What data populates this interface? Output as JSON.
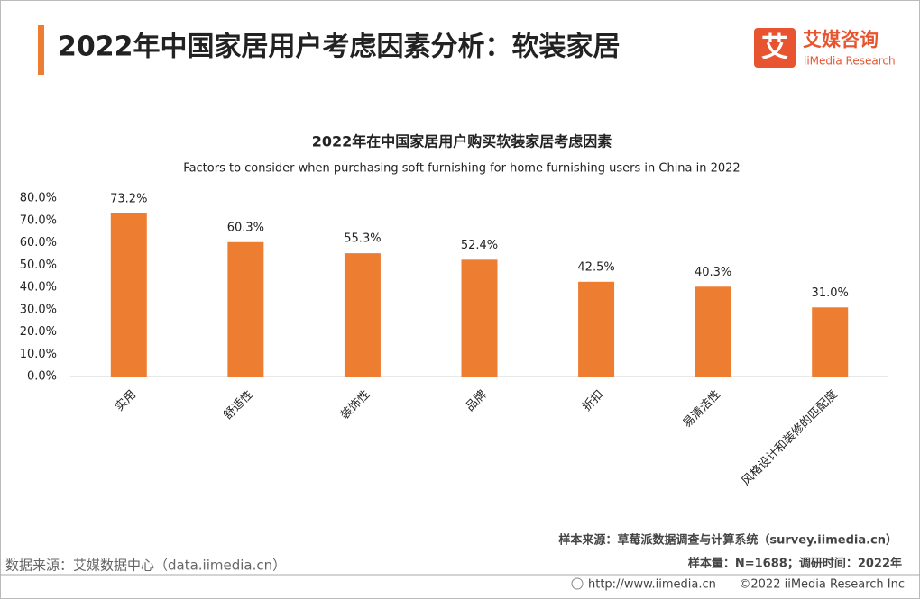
{
  "header": {
    "title": "2022年中国家居用户考虑因素分析：软装家居",
    "logo_mark": "艾",
    "logo_name": "艾媒咨询",
    "logo_en": "iiMedia Research"
  },
  "chart_data": {
    "type": "bar",
    "title": "2022年在中国家居用户购买软装家居考虑因素",
    "subtitle": "Factors to consider when purchasing soft furnishing for home furnishing users in China in 2022",
    "categories": [
      "实用",
      "舒适性",
      "装饰性",
      "品牌",
      "折扣",
      "易清洁性",
      "风格设计和装修的匹配度"
    ],
    "values": [
      73.2,
      60.3,
      55.3,
      52.4,
      42.5,
      40.3,
      31.0
    ],
    "value_labels": [
      "73.2%",
      "60.3%",
      "55.3%",
      "52.4%",
      "42.5%",
      "40.3%",
      "31.0%"
    ],
    "color": "#ed7d31",
    "ylim": [
      0,
      80
    ],
    "yticks": [
      {
        "value": 0,
        "label": "0.0%"
      },
      {
        "value": 10,
        "label": "10.0%"
      },
      {
        "value": 20,
        "label": "20.0%"
      },
      {
        "value": 30,
        "label": "30.0%"
      },
      {
        "value": 40,
        "label": "40.0%"
      },
      {
        "value": 50,
        "label": "50.0%"
      },
      {
        "value": 60,
        "label": "60.0%"
      },
      {
        "value": 70,
        "label": "70.0%"
      },
      {
        "value": 80,
        "label": "80.0%"
      }
    ],
    "grid": false
  },
  "footer": {
    "sample_source": "样本来源：草莓派数据调查与计算系统（survey.iimedia.cn）",
    "sample_size": "样本量：N=1688；调研时间：2022年",
    "data_source": "数据来源：艾媒数据中心（data.iimedia.cn）",
    "url": "http://www.iimedia.cn",
    "copyright": "©2022  iiMedia Research  Inc"
  }
}
